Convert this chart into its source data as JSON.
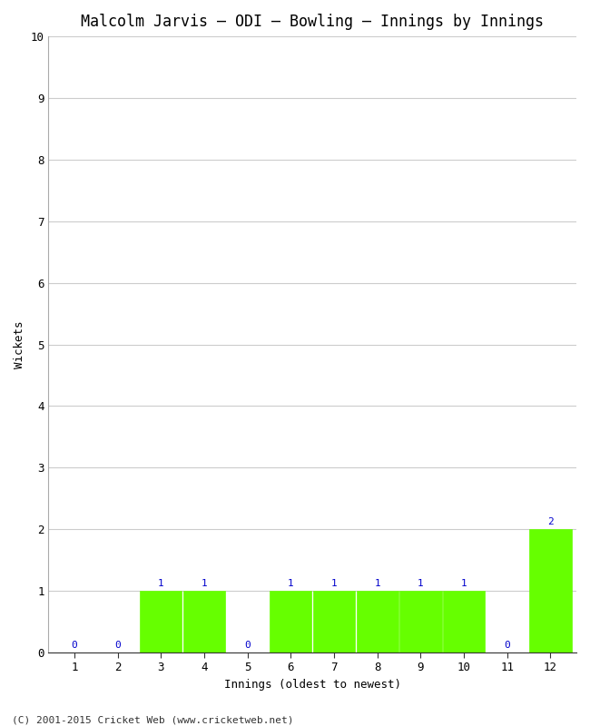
{
  "title": "Malcolm Jarvis – ODI – Bowling – Innings by Innings",
  "xlabel": "Innings (oldest to newest)",
  "ylabel": "Wickets",
  "categories": [
    1,
    2,
    3,
    4,
    5,
    6,
    7,
    8,
    9,
    10,
    11,
    12
  ],
  "values": [
    0,
    0,
    1,
    1,
    0,
    1,
    1,
    1,
    1,
    1,
    0,
    2
  ],
  "bar_color": "#66ff00",
  "bar_edge_color": "#66ff00",
  "ylim": [
    0,
    10
  ],
  "yticks": [
    0,
    1,
    2,
    3,
    4,
    5,
    6,
    7,
    8,
    9,
    10
  ],
  "label_color": "#0000cc",
  "label_fontsize": 8,
  "title_fontsize": 12,
  "axis_label_fontsize": 9,
  "tick_fontsize": 9,
  "background_color": "#ffffff",
  "plot_bg_color": "#ffffff",
  "footer_text": "(C) 2001-2015 Cricket Web (www.cricketweb.net)",
  "footer_fontsize": 8,
  "grid_color": "#cccccc",
  "bar_width": 0.97
}
